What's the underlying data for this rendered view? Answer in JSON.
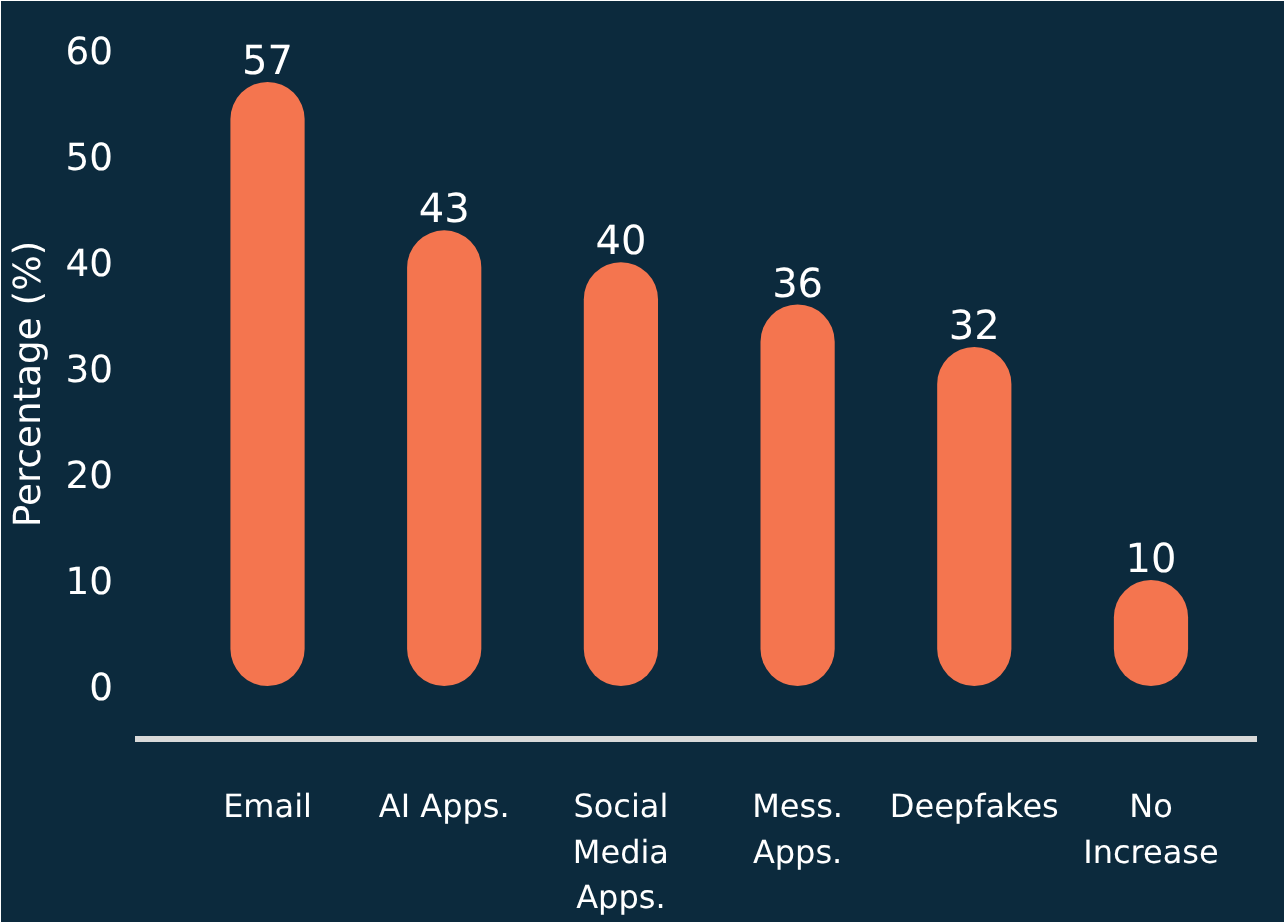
{
  "chart_data": {
    "type": "bar",
    "ylabel": "Percentage (%)",
    "categories": [
      "Email",
      "AI Apps.",
      "Social Media Apps.",
      "Mess. Apps.",
      "Deepfakes",
      "No Increase"
    ],
    "values": [
      57,
      43,
      40,
      36,
      32,
      10
    ],
    "color": "#f4754f",
    "ylim": [
      -5,
      62
    ],
    "yticks": [
      0,
      10,
      20,
      30,
      40,
      50,
      60
    ],
    "data_labels": true,
    "grid": false
  }
}
